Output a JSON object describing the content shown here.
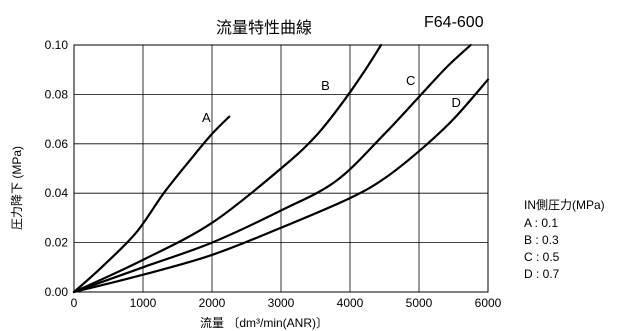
{
  "chart_data": {
    "type": "line",
    "title": "流量特性曲線",
    "model": "F64-600",
    "xlabel": "流量 〔dm³/min(ANR)〕",
    "ylabel": "圧力降下 (MPa)",
    "xlim": [
      0,
      6000
    ],
    "ylim": [
      0,
      0.1
    ],
    "x_ticks": [
      0,
      1000,
      2000,
      3000,
      4000,
      5000,
      6000
    ],
    "y_ticks": [
      0.0,
      0.02,
      0.04,
      0.06,
      0.08,
      0.1
    ],
    "x_tick_labels": [
      "0",
      "1000",
      "2000",
      "3000",
      "4000",
      "5000",
      "6000"
    ],
    "y_tick_labels": [
      "0.00",
      "0.02",
      "0.04",
      "0.06",
      "0.08",
      "0.10"
    ],
    "grid": true,
    "legend": {
      "title": "IN側圧力(MPa)",
      "entries": [
        "A : 0.1",
        "B : 0.3",
        "C : 0.5",
        "D : 0.7"
      ]
    },
    "series": [
      {
        "name": "A",
        "x": [
          0,
          400,
          900,
          1300,
          1700,
          2000,
          2250
        ],
        "y": [
          0,
          0.01,
          0.024,
          0.04,
          0.054,
          0.064,
          0.071
        ]
      },
      {
        "name": "B",
        "x": [
          0,
          1000,
          2000,
          3000,
          3500,
          3900,
          4200,
          4450
        ],
        "y": [
          0,
          0.013,
          0.028,
          0.05,
          0.063,
          0.077,
          0.089,
          0.1
        ]
      },
      {
        "name": "C",
        "x": [
          0,
          1000,
          2000,
          3000,
          3800,
          4500,
          5000,
          5400,
          5750
        ],
        "y": [
          0,
          0.01,
          0.02,
          0.033,
          0.045,
          0.064,
          0.079,
          0.091,
          0.1
        ]
      },
      {
        "name": "D",
        "x": [
          0,
          1000,
          2000,
          3000,
          4000,
          4500,
          5000,
          5500,
          6000
        ],
        "y": [
          0,
          0.007,
          0.015,
          0.026,
          0.038,
          0.046,
          0.057,
          0.07,
          0.086
        ]
      }
    ]
  }
}
